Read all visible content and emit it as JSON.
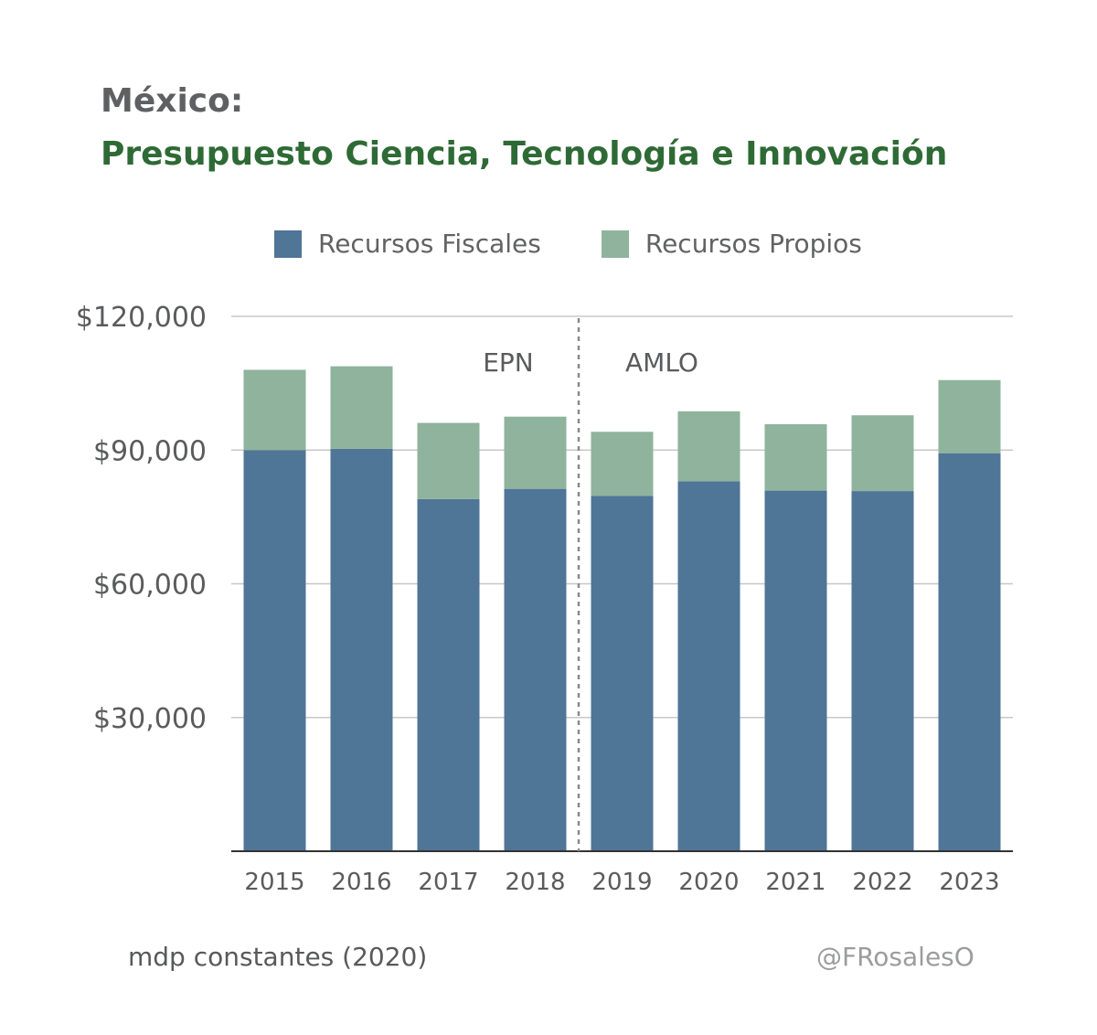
{
  "title": {
    "line1": "México:",
    "line2": "Presupuesto Ciencia, Tecnología e Innovación"
  },
  "colors": {
    "fiscal": "#4f7597",
    "propios": "#8fb39c",
    "title_green": "#2e6a35",
    "grid": "#c8c8c8"
  },
  "legend": {
    "fiscal_label": "Recursos Fiscales",
    "propios_label": "Recursos Propios"
  },
  "annotations": {
    "left_period": "EPN",
    "right_period": "AMLO"
  },
  "footer": {
    "units": "mdp constantes (2020)",
    "credit": "@FRosalesO"
  },
  "chart_data": {
    "type": "bar",
    "stacked": true,
    "categories": [
      "2015",
      "2016",
      "2017",
      "2018",
      "2019",
      "2020",
      "2021",
      "2022",
      "2023"
    ],
    "series": [
      {
        "name": "Recursos Fiscales",
        "values": [
          90000,
          90300,
          79000,
          81300,
          79700,
          83000,
          80900,
          80800,
          89300
        ]
      },
      {
        "name": "Recursos Propios",
        "values": [
          18000,
          18500,
          17100,
          16200,
          14400,
          15700,
          14900,
          17000,
          16400
        ]
      }
    ],
    "y_ticks": [
      "$120,000",
      "$90,000",
      "$60,000",
      "$30,000"
    ],
    "ylim": [
      0,
      120000
    ],
    "grid": true,
    "legend_position": "top",
    "divider_between": [
      "2018",
      "2019"
    ]
  }
}
